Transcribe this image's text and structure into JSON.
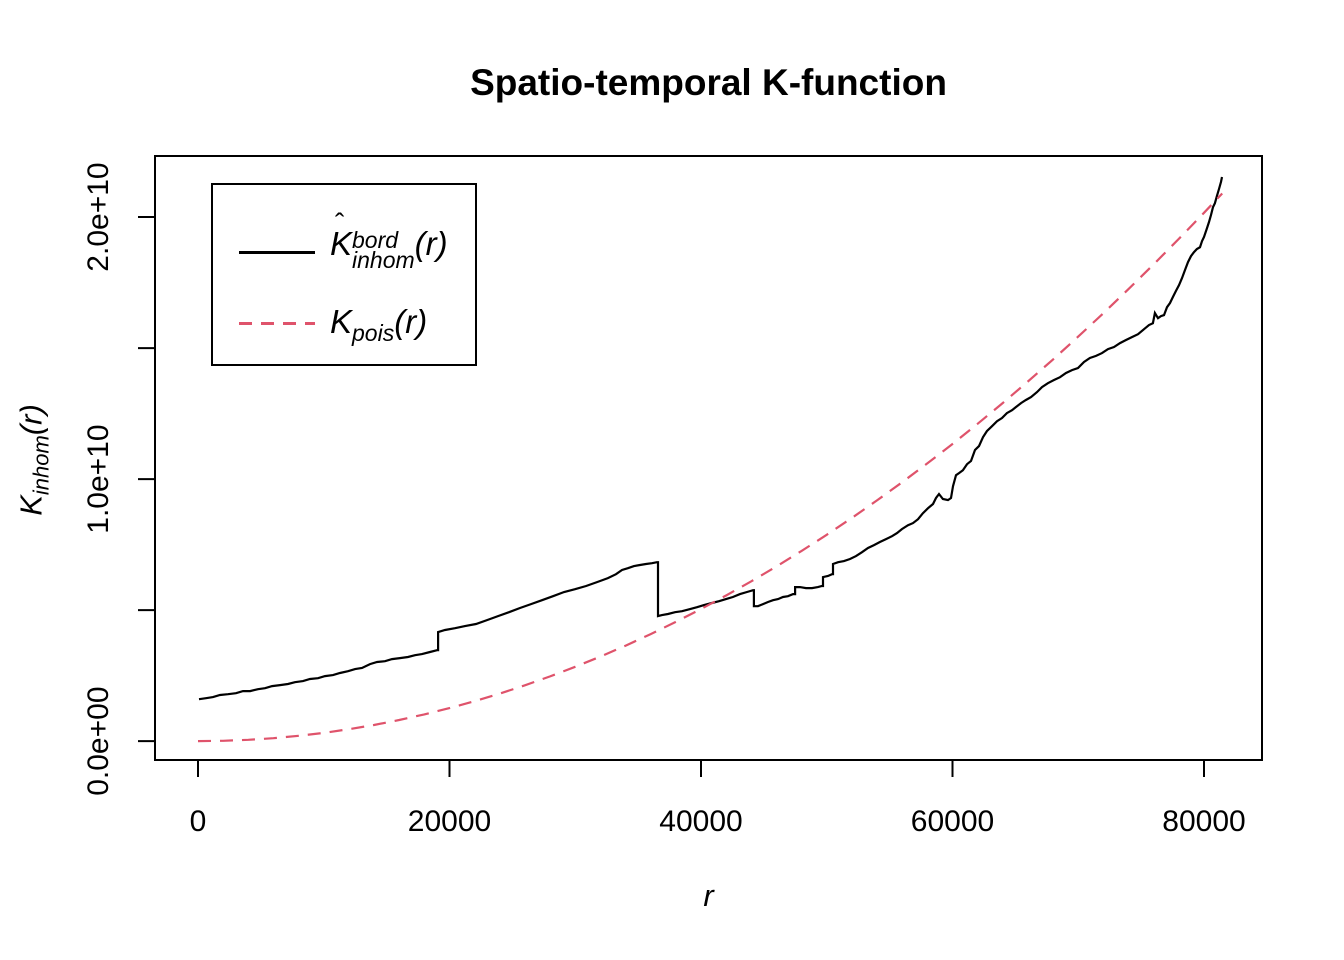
{
  "title": {
    "text": "Spatio-temporal K-function"
  },
  "x_axis": {
    "label": "r"
  },
  "y_axis": {
    "label_parts": {
      "k": "K",
      "sub": "inhom",
      "paren": "(r)"
    }
  },
  "legend": {
    "entries": [
      {
        "name": "kinhom-bord-estimate",
        "k": "K",
        "hat": "ˆ",
        "sup": "bord",
        "sub": "inhom",
        "paren": "(r)",
        "color": "#000000",
        "style": "solid"
      },
      {
        "name": "kpois-theoretical",
        "k": "K",
        "sub": "pois",
        "paren": "(r)",
        "color": "#DF536B",
        "style": "dashed"
      }
    ]
  },
  "colors": {
    "curve_kinhom": "#000000",
    "curve_kpois": "#DF536B",
    "frame": "#000000",
    "background": "#FFFFFF"
  },
  "chart_data": {
    "type": "line",
    "title": "Spatio-temporal K-function",
    "xlabel": "r",
    "ylabel": "K_inhom(r)",
    "xlim": [
      -3419,
      84613
    ],
    "ylim": [
      -720000000.0,
      22330000000.0
    ],
    "grid": false,
    "legend_position": "top-left",
    "x_ticks": [
      {
        "value": 0,
        "label": "0"
      },
      {
        "value": 20000,
        "label": "20000"
      },
      {
        "value": 40000,
        "label": "40000"
      },
      {
        "value": 60000,
        "label": "60000"
      },
      {
        "value": 80000,
        "label": "80000"
      }
    ],
    "y_ticks": [
      {
        "value": 0,
        "label": "0.0e+00"
      },
      {
        "value": 5000000000.0,
        "label": ""
      },
      {
        "value": 10000000000.0,
        "label": "1.0e+10"
      },
      {
        "value": 15000000000.0,
        "label": ""
      },
      {
        "value": 20000000000.0,
        "label": "2.0e+10"
      }
    ],
    "series": [
      {
        "name": "K_inhom_bord_estimate",
        "style": "solid",
        "color": "#000000",
        "points": [
          [
            80,
            1600000000.0
          ],
          [
            640,
            1640000000.0
          ],
          [
            1190,
            1680000000.0
          ],
          [
            1750,
            1760000000.0
          ],
          [
            2390,
            1790000000.0
          ],
          [
            3020,
            1830000000.0
          ],
          [
            3580,
            1910000000.0
          ],
          [
            4140,
            1910000000.0
          ],
          [
            4770,
            1980000000.0
          ],
          [
            5330,
            2020000000.0
          ],
          [
            5890,
            2100000000.0
          ],
          [
            6520,
            2140000000.0
          ],
          [
            7160,
            2180000000.0
          ],
          [
            7710,
            2250000000.0
          ],
          [
            8350,
            2290000000.0
          ],
          [
            8910,
            2370000000.0
          ],
          [
            9540,
            2400000000.0
          ],
          [
            10100,
            2480000000.0
          ],
          [
            10740,
            2520000000.0
          ],
          [
            11290,
            2600000000.0
          ],
          [
            11930,
            2670000000.0
          ],
          [
            12490,
            2750000000.0
          ],
          [
            13040,
            2790000000.0
          ],
          [
            13680,
            2940000000.0
          ],
          [
            14240,
            3020000000.0
          ],
          [
            14870,
            3050000000.0
          ],
          [
            15430,
            3130000000.0
          ],
          [
            16060,
            3170000000.0
          ],
          [
            16700,
            3210000000.0
          ],
          [
            17260,
            3280000000.0
          ],
          [
            17810,
            3320000000.0
          ],
          [
            18450,
            3400000000.0
          ],
          [
            19010,
            3470000000.0
          ],
          [
            19090,
            3470000000.0
          ],
          [
            19090,
            4160000000.0
          ],
          [
            19640,
            4240000000.0
          ],
          [
            20440,
            4310000000.0
          ],
          [
            21230,
            4390000000.0
          ],
          [
            22110,
            4470000000.0
          ],
          [
            22980,
            4620000000.0
          ],
          [
            23860,
            4770000000.0
          ],
          [
            24730,
            4920000000.0
          ],
          [
            25610,
            5080000000.0
          ],
          [
            26480,
            5230000000.0
          ],
          [
            27360,
            5380000000.0
          ],
          [
            28230,
            5530000000.0
          ],
          [
            29110,
            5690000000.0
          ],
          [
            29980,
            5800000000.0
          ],
          [
            30860,
            5920000000.0
          ],
          [
            31730,
            6070000000.0
          ],
          [
            32600,
            6220000000.0
          ],
          [
            33240,
            6370000000.0
          ],
          [
            33720,
            6530000000.0
          ],
          [
            34190,
            6600000000.0
          ],
          [
            34670,
            6680000000.0
          ],
          [
            35150,
            6720000000.0
          ],
          [
            35630,
            6760000000.0
          ],
          [
            36100,
            6790000000.0
          ],
          [
            36500,
            6830000000.0
          ],
          [
            36580,
            6830000000.0
          ],
          [
            36580,
            4770000000.0
          ],
          [
            36900,
            4810000000.0
          ],
          [
            37380,
            4850000000.0
          ],
          [
            37930,
            4920000000.0
          ],
          [
            38490,
            4960000000.0
          ],
          [
            39130,
            5040000000.0
          ],
          [
            39680,
            5110000000.0
          ],
          [
            40240,
            5190000000.0
          ],
          [
            40870,
            5270000000.0
          ],
          [
            41430,
            5340000000.0
          ],
          [
            41990,
            5420000000.0
          ],
          [
            42540,
            5500000000.0
          ],
          [
            43100,
            5610000000.0
          ],
          [
            43660,
            5690000000.0
          ],
          [
            44140,
            5760000000.0
          ],
          [
            44210,
            5760000000.0
          ],
          [
            44210,
            5150000000.0
          ],
          [
            44530,
            5150000000.0
          ],
          [
            44930,
            5230000000.0
          ],
          [
            45330,
            5310000000.0
          ],
          [
            45730,
            5380000000.0
          ],
          [
            46120,
            5420000000.0
          ],
          [
            46520,
            5500000000.0
          ],
          [
            46920,
            5530000000.0
          ],
          [
            47320,
            5610000000.0
          ],
          [
            47480,
            5610000000.0
          ],
          [
            47480,
            5880000000.0
          ],
          [
            47870,
            5880000000.0
          ],
          [
            48350,
            5840000000.0
          ],
          [
            48830,
            5840000000.0
          ],
          [
            49300,
            5880000000.0
          ],
          [
            49620,
            5920000000.0
          ],
          [
            49700,
            5920000000.0
          ],
          [
            49700,
            6260000000.0
          ],
          [
            50100,
            6300000000.0
          ],
          [
            50420,
            6370000000.0
          ],
          [
            50500,
            6370000000.0
          ],
          [
            50500,
            6760000000.0
          ],
          [
            50900,
            6830000000.0
          ],
          [
            51370,
            6870000000.0
          ],
          [
            51850,
            6950000000.0
          ],
          [
            52330,
            7060000000.0
          ],
          [
            52800,
            7210000000.0
          ],
          [
            53280,
            7370000000.0
          ],
          [
            53760,
            7480000000.0
          ],
          [
            54230,
            7600000000.0
          ],
          [
            54710,
            7710000000.0
          ],
          [
            55190,
            7820000000.0
          ],
          [
            55590,
            7940000000.0
          ],
          [
            55980,
            8090000000.0
          ],
          [
            56460,
            8240000000.0
          ],
          [
            56860,
            8320000000.0
          ],
          [
            57260,
            8470000000.0
          ],
          [
            57650,
            8700000000.0
          ],
          [
            58050,
            8890000000.0
          ],
          [
            58450,
            9050000000.0
          ],
          [
            58690,
            9280000000.0
          ],
          [
            58930,
            9430000000.0
          ],
          [
            59240,
            9240000000.0
          ],
          [
            59640,
            9200000000.0
          ],
          [
            59880,
            9280000000.0
          ],
          [
            60040,
            9730000000.0
          ],
          [
            60280,
            10150000000.0
          ],
          [
            60520,
            10230000000.0
          ],
          [
            60830,
            10340000000.0
          ],
          [
            61150,
            10570000000.0
          ],
          [
            61470,
            10690000000.0
          ],
          [
            61790,
            11110000000.0
          ],
          [
            62110,
            11260000000.0
          ],
          [
            62430,
            11600000000.0
          ],
          [
            62740,
            11830000000.0
          ],
          [
            63140,
            12020000000.0
          ],
          [
            63540,
            12210000000.0
          ],
          [
            63940,
            12330000000.0
          ],
          [
            64330,
            12520000000.0
          ],
          [
            64730,
            12630000000.0
          ],
          [
            65050,
            12750000000.0
          ],
          [
            65450,
            12900000000.0
          ],
          [
            65840,
            13020000000.0
          ],
          [
            66240,
            13130000000.0
          ],
          [
            66720,
            13320000000.0
          ],
          [
            67120,
            13510000000.0
          ],
          [
            67590,
            13660000000.0
          ],
          [
            68070,
            13780000000.0
          ],
          [
            68550,
            13890000000.0
          ],
          [
            69030,
            14050000000.0
          ],
          [
            69500,
            14160000000.0
          ],
          [
            69980,
            14240000000.0
          ],
          [
            70460,
            14470000000.0
          ],
          [
            70930,
            14620000000.0
          ],
          [
            71410,
            14700000000.0
          ],
          [
            71890,
            14810000000.0
          ],
          [
            72370,
            14960000000.0
          ],
          [
            72840,
            15040000000.0
          ],
          [
            73320,
            15190000000.0
          ],
          [
            73800,
            15310000000.0
          ],
          [
            74270,
            15420000000.0
          ],
          [
            74750,
            15530000000.0
          ],
          [
            75230,
            15720000000.0
          ],
          [
            75630,
            15880000000.0
          ],
          [
            75940,
            15950000000.0
          ],
          [
            76100,
            16340000000.0
          ],
          [
            76340,
            16140000000.0
          ],
          [
            76580,
            16220000000.0
          ],
          [
            76820,
            16260000000.0
          ],
          [
            77060,
            16560000000.0
          ],
          [
            77300,
            16720000000.0
          ],
          [
            77530,
            16950000000.0
          ],
          [
            77770,
            17180000000.0
          ],
          [
            78010,
            17400000000.0
          ],
          [
            78250,
            17670000000.0
          ],
          [
            78490,
            17980000000.0
          ],
          [
            78730,
            18280000000.0
          ],
          [
            78970,
            18510000000.0
          ],
          [
            79200,
            18660000000.0
          ],
          [
            79440,
            18780000000.0
          ],
          [
            79680,
            18850000000.0
          ],
          [
            79840,
            19080000000.0
          ],
          [
            80000,
            19240000000.0
          ],
          [
            80240,
            19580000000.0
          ],
          [
            80400,
            19810000000.0
          ],
          [
            80560,
            20080000000.0
          ],
          [
            80720,
            20380000000.0
          ],
          [
            80870,
            20530000000.0
          ],
          [
            81030,
            20800000000.0
          ],
          [
            81190,
            21070000000.0
          ],
          [
            81350,
            21340000000.0
          ],
          [
            81430,
            21530000000.0
          ]
        ]
      },
      {
        "name": "K_pois_theoretical",
        "style": "dashed",
        "color": "#DF536B",
        "points": [
          [
            0,
            0
          ],
          [
            2000,
            13000000.0
          ],
          [
            4000,
            50000000.0
          ],
          [
            6000,
            113000000.0
          ],
          [
            8000,
            202000000.0
          ],
          [
            10000,
            315000000.0
          ],
          [
            12000,
            454000000.0
          ],
          [
            14000,
            617000000.0
          ],
          [
            16000,
            806000000.0
          ],
          [
            18000,
            1021000000.0
          ],
          [
            20000,
            1260000000.0
          ],
          [
            22000,
            1525000000.0
          ],
          [
            24000,
            1815000000.0
          ],
          [
            26000,
            2130000000.0
          ],
          [
            28000,
            2470000000.0
          ],
          [
            30000,
            2835000000.0
          ],
          [
            32000,
            3226000000.0
          ],
          [
            34000,
            3642000000.0
          ],
          [
            36000,
            4083000000.0
          ],
          [
            38000,
            4549000000.0
          ],
          [
            40000,
            5041000000.0
          ],
          [
            42000,
            5557000000.0
          ],
          [
            44000,
            6100000000.0
          ],
          [
            46000,
            6666000000.0
          ],
          [
            48000,
            7259000000.0
          ],
          [
            50000,
            7876000000.0
          ],
          [
            52000,
            8519000000.0
          ],
          [
            54000,
            9187000000.0
          ],
          [
            56000,
            9880000000.0
          ],
          [
            58000,
            10598000000.0
          ],
          [
            60000,
            11341000000.0
          ],
          [
            62000,
            12110000000.0
          ],
          [
            64000,
            12904000000.0
          ],
          [
            66000,
            13723000000.0
          ],
          [
            68000,
            14567000000.0
          ],
          [
            70000,
            15436000000.0
          ],
          [
            72000,
            16331000000.0
          ],
          [
            74000,
            17251000000.0
          ],
          [
            76000,
            18196000000.0
          ],
          [
            78000,
            19166000000.0
          ],
          [
            80000,
            20162000000.0
          ],
          [
            81450,
            20900000000.0
          ]
        ]
      }
    ]
  }
}
